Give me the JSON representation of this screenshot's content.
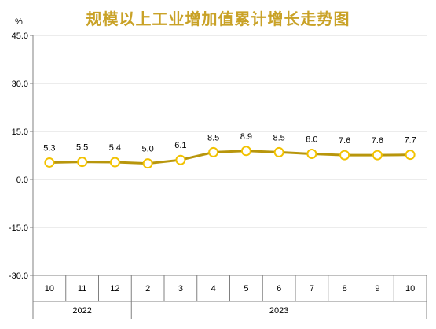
{
  "chart_data": {
    "type": "line",
    "title": "规模以上工业增加值累计增长走势图",
    "ylabel": "%",
    "ylim": [
      -30,
      45
    ],
    "yticks": [
      "45.0",
      "30.0",
      "15.0",
      "0.0",
      "-15.0",
      "-30.0"
    ],
    "ytick_values": [
      45,
      30,
      15,
      0,
      -15,
      -30
    ],
    "grid": true,
    "categories": [
      "10",
      "11",
      "12",
      "2",
      "3",
      "4",
      "5",
      "6",
      "7",
      "8",
      "9",
      "10"
    ],
    "year_groups": [
      {
        "label": "2022",
        "count": 3
      },
      {
        "label": "2023",
        "count": 9
      }
    ],
    "series": [
      {
        "values": [
          5.3,
          5.5,
          5.4,
          5.0,
          6.1,
          8.5,
          8.9,
          8.5,
          8.0,
          7.6,
          7.6,
          7.7
        ],
        "labels": [
          "5.3",
          "5.5",
          "5.4",
          "5.0",
          "6.1",
          "8.5",
          "8.9",
          "8.5",
          "8.0",
          "7.6",
          "7.6",
          "7.7"
        ],
        "color": "#B8960C",
        "marker_fill": "#FFFFFF",
        "marker_stroke": "#F2C200"
      }
    ],
    "colors": {
      "title": "#C9A227",
      "grid": "#D9D9D9",
      "axis": "#808080"
    }
  }
}
